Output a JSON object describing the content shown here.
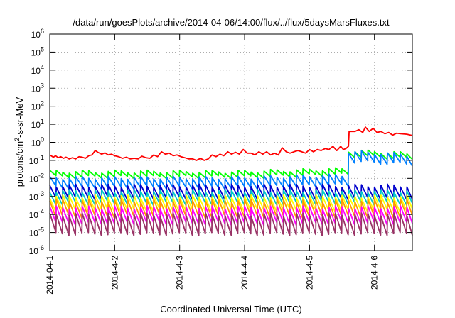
{
  "chart_data": {
    "type": "line",
    "title": "/data/run/goesPlots/archive/2014-04-06/14:00/flux/../flux/5daysMarsFluxes.txt",
    "xlabel": "Coordinated Universal Time (UTC)",
    "ylabel": {
      "pre": "protons/cm",
      "sup": "2",
      "post": "-s-sr-MeV"
    },
    "y_scale": "log",
    "ylim": [
      1e-06,
      1000000.0
    ],
    "y_ticks": [
      {
        "value": 1e-06,
        "base": "10",
        "exp": "-6"
      },
      {
        "value": 1e-05,
        "base": "10",
        "exp": "-5"
      },
      {
        "value": 0.0001,
        "base": "10",
        "exp": "-4"
      },
      {
        "value": 0.001,
        "base": "10",
        "exp": "-3"
      },
      {
        "value": 0.01,
        "base": "10",
        "exp": "-2"
      },
      {
        "value": 0.1,
        "base": "10",
        "exp": "-1"
      },
      {
        "value": 1,
        "base": "10",
        "exp": "0"
      },
      {
        "value": 10,
        "base": "10",
        "exp": "1"
      },
      {
        "value": 100,
        "base": "10",
        "exp": "2"
      },
      {
        "value": 1000,
        "base": "10",
        "exp": "3"
      },
      {
        "value": 10000,
        "base": "10",
        "exp": "4"
      },
      {
        "value": 100000,
        "base": "10",
        "exp": "5"
      },
      {
        "value": 1000000,
        "base": "10",
        "exp": "6"
      }
    ],
    "xlim": [
      "2014-04-01",
      "2014-04-06 14:00"
    ],
    "x_ticks": [
      {
        "value": "2014-04-01",
        "label": "2014-04-1"
      },
      {
        "value": "2014-04-02",
        "label": "2014-4-2"
      },
      {
        "value": "2014-04-03",
        "label": "2014-4-3"
      },
      {
        "value": "2014-04-04",
        "label": "2014-4-4"
      },
      {
        "value": "2014-04-05",
        "label": "2014-4-5"
      },
      {
        "value": "2014-04-06",
        "label": "2014-4-6"
      }
    ],
    "grid": true,
    "legend": false,
    "series": [
      {
        "color": "#ff0000",
        "values": [
          [
            0.0,
            0.2
          ],
          [
            0.055,
            0.15
          ],
          [
            0.09,
            0.18
          ],
          [
            0.13,
            0.14
          ],
          [
            0.17,
            0.16
          ],
          [
            0.21,
            0.13
          ],
          [
            0.25,
            0.15
          ],
          [
            0.3,
            0.12
          ],
          [
            0.35,
            0.14
          ],
          [
            0.4,
            0.12
          ],
          [
            0.45,
            0.16
          ],
          [
            0.5,
            0.15
          ],
          [
            0.55,
            0.13
          ],
          [
            0.6,
            0.18
          ],
          [
            0.65,
            0.2
          ],
          [
            0.7,
            0.35
          ],
          [
            0.74,
            0.28
          ],
          [
            0.8,
            0.22
          ],
          [
            0.85,
            0.26
          ],
          [
            0.9,
            0.2
          ],
          [
            0.95,
            0.22
          ],
          [
            1.0,
            0.18
          ],
          [
            1.06,
            0.16
          ],
          [
            1.12,
            0.13
          ],
          [
            1.18,
            0.15
          ],
          [
            1.24,
            0.12
          ],
          [
            1.3,
            0.13
          ],
          [
            1.36,
            0.12
          ],
          [
            1.42,
            0.17
          ],
          [
            1.48,
            0.14
          ],
          [
            1.54,
            0.13
          ],
          [
            1.6,
            0.2
          ],
          [
            1.66,
            0.16
          ],
          [
            1.72,
            0.3
          ],
          [
            1.78,
            0.22
          ],
          [
            1.84,
            0.25
          ],
          [
            1.9,
            0.18
          ],
          [
            1.96,
            0.2
          ],
          [
            2.02,
            0.16
          ],
          [
            2.08,
            0.14
          ],
          [
            2.14,
            0.12
          ],
          [
            2.2,
            0.12
          ],
          [
            2.26,
            0.1
          ],
          [
            2.32,
            0.13
          ],
          [
            2.38,
            0.1
          ],
          [
            2.44,
            0.12
          ],
          [
            2.5,
            0.2
          ],
          [
            2.56,
            0.16
          ],
          [
            2.62,
            0.22
          ],
          [
            2.68,
            0.18
          ],
          [
            2.74,
            0.3
          ],
          [
            2.8,
            0.22
          ],
          [
            2.86,
            0.28
          ],
          [
            2.92,
            0.22
          ],
          [
            2.98,
            0.4
          ],
          [
            3.04,
            0.25
          ],
          [
            3.1,
            0.25
          ],
          [
            3.16,
            0.2
          ],
          [
            3.22,
            0.3
          ],
          [
            3.28,
            0.22
          ],
          [
            3.34,
            0.3
          ],
          [
            3.4,
            0.2
          ],
          [
            3.46,
            0.25
          ],
          [
            3.52,
            0.2
          ],
          [
            3.58,
            0.5
          ],
          [
            3.64,
            0.3
          ],
          [
            3.7,
            0.25
          ],
          [
            3.76,
            0.3
          ],
          [
            3.82,
            0.35
          ],
          [
            3.88,
            0.3
          ],
          [
            3.94,
            0.25
          ],
          [
            4.0,
            0.4
          ],
          [
            4.06,
            0.3
          ],
          [
            4.12,
            0.4
          ],
          [
            4.18,
            0.35
          ],
          [
            4.24,
            0.45
          ],
          [
            4.3,
            0.4
          ],
          [
            4.36,
            0.6
          ],
          [
            4.42,
            0.35
          ],
          [
            4.48,
            0.6
          ],
          [
            4.52,
            0.4
          ],
          [
            4.56,
            0.45
          ],
          [
            4.6,
            0.6
          ],
          [
            4.61,
            4.0
          ],
          [
            4.7,
            4.0
          ],
          [
            4.76,
            5.0
          ],
          [
            4.82,
            3.5
          ],
          [
            4.86,
            7.0
          ],
          [
            4.92,
            4.0
          ],
          [
            4.98,
            6.0
          ],
          [
            5.04,
            3.5
          ],
          [
            5.1,
            4.0
          ],
          [
            5.16,
            3.0
          ],
          [
            5.22,
            3.5
          ],
          [
            5.28,
            2.5
          ],
          [
            5.34,
            3.2
          ],
          [
            5.4,
            3.0
          ],
          [
            5.5,
            2.8
          ],
          [
            5.583,
            2.4
          ]
        ]
      },
      {
        "color": "#00ff00",
        "teeth": {
          "baseLow": 0.011,
          "baseHigh": 0.024,
          "ratio": 2.0
        },
        "bumps": [
          [
            4.6,
            0.35
          ],
          [
            4.75,
            0.18
          ],
          [
            5.0,
            0.12
          ]
        ]
      },
      {
        "color": "#0080ff",
        "teeth": {
          "baseLow": 0.003,
          "baseHigh": 0.011,
          "ratio": 3.5
        },
        "bumps": [
          [
            4.6,
            0.3
          ],
          [
            4.75,
            0.15
          ],
          [
            5.0,
            0.12
          ]
        ]
      },
      {
        "color": "#0000cc",
        "teeth": {
          "baseLow": 0.0007,
          "baseHigh": 0.004,
          "ratio": 5.0
        },
        "bumps": []
      },
      {
        "color": "#00c8c8",
        "teeth": {
          "baseLow": 0.0004,
          "baseHigh": 0.002,
          "ratio": 5.0
        },
        "bumps": []
      },
      {
        "color": "#ffff00",
        "teeth": {
          "baseLow": 0.00015,
          "baseHigh": 0.001,
          "ratio": 6.0
        },
        "bumps": []
      },
      {
        "color": "#ff9900",
        "teeth": {
          "baseLow": 7e-05,
          "baseHigh": 0.0006,
          "ratio": 8.0
        },
        "bumps": []
      },
      {
        "color": "#ff00ff",
        "teeth": {
          "baseLow": 3e-05,
          "baseHigh": 0.00025,
          "ratio": 8.0
        },
        "bumps": []
      },
      {
        "color": "#993366",
        "teeth": {
          "baseLow": 6e-06,
          "baseHigh": 0.0001,
          "ratio": 12.0
        },
        "bumps": []
      }
    ],
    "tooth_period_days": 0.1
  }
}
